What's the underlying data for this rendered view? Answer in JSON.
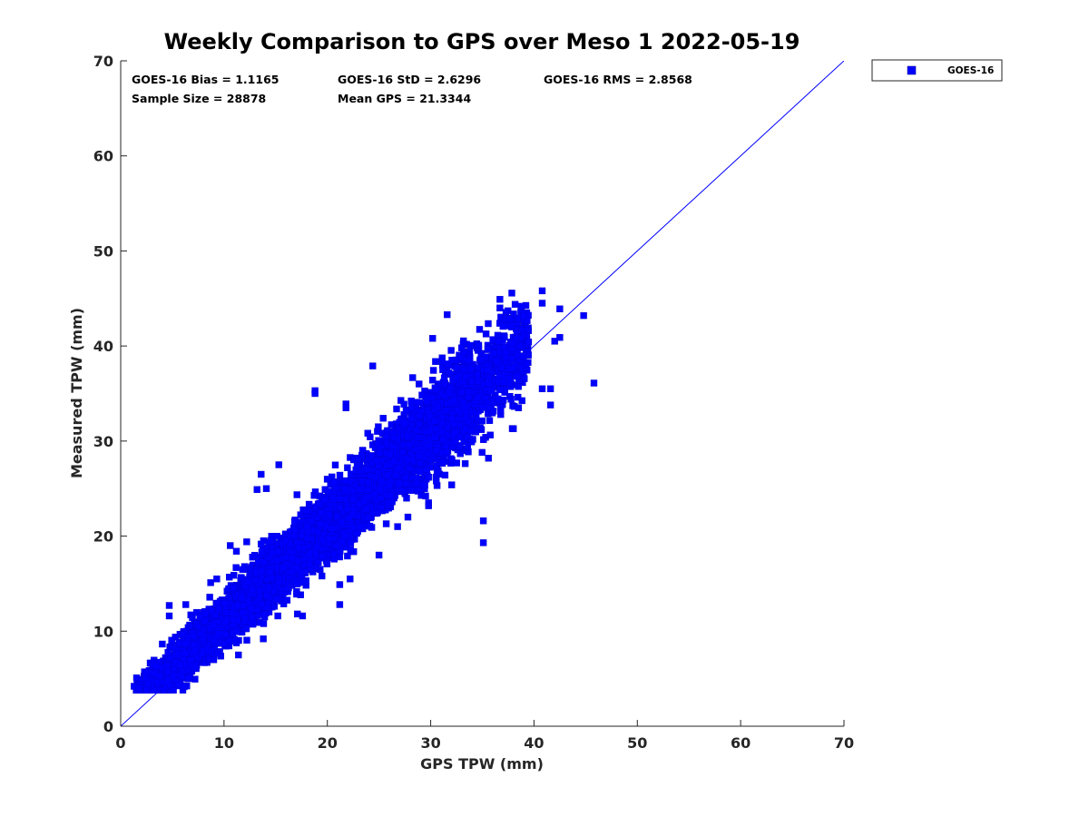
{
  "chart_data": {
    "type": "scatter",
    "title": "Weekly Comparison to GPS over Meso 1 2022-05-19",
    "xlabel": "GPS TPW (mm)",
    "ylabel": "Measured TPW (mm)",
    "xlim": [
      0,
      70
    ],
    "ylim": [
      0,
      70
    ],
    "xticks": [
      "0",
      "10",
      "20",
      "30",
      "40",
      "50",
      "60",
      "70"
    ],
    "yticks": [
      "0",
      "10",
      "20",
      "30",
      "40",
      "50",
      "60",
      "70"
    ],
    "grid": false,
    "legend_position": "outside-top-right",
    "reference_line": {
      "name": "1:1 line",
      "x": [
        0,
        70
      ],
      "y": [
        0,
        70
      ],
      "color": "#0000ff"
    },
    "stats": {
      "bias": "GOES-16 Bias = 1.1165",
      "std": "GOES-16 StD = 2.6296",
      "rms": "GOES-16 RMS = 2.8568",
      "sample_size": "Sample Size = 28878",
      "mean_gps": "Mean GPS = 21.3344"
    },
    "series": [
      {
        "name": "GOES-16",
        "color": "#0000ff",
        "marker": "square",
        "bulk_model": {
          "x_min": 1.5,
          "x_max": 39.5,
          "slope": 1.0,
          "intercept": 1.1,
          "spread": 1.6,
          "count": 6500
        },
        "outliers": [
          {
            "x": 45.8,
            "y": 36.1
          },
          {
            "x": 44.8,
            "y": 43.2
          },
          {
            "x": 42.5,
            "y": 43.9
          },
          {
            "x": 42.5,
            "y": 40.9
          },
          {
            "x": 42.0,
            "y": 40.5
          },
          {
            "x": 40.8,
            "y": 45.8
          },
          {
            "x": 40.8,
            "y": 44.5
          },
          {
            "x": 41.6,
            "y": 35.5
          },
          {
            "x": 41.6,
            "y": 33.8
          },
          {
            "x": 40.8,
            "y": 35.5
          },
          {
            "x": 39.0,
            "y": 43.2
          },
          {
            "x": 36.7,
            "y": 44.9
          },
          {
            "x": 36.7,
            "y": 44.0
          },
          {
            "x": 38.6,
            "y": 40.0
          },
          {
            "x": 38.5,
            "y": 33.5
          },
          {
            "x": 38.0,
            "y": 31.3
          },
          {
            "x": 35.1,
            "y": 21.6
          },
          {
            "x": 35.1,
            "y": 19.3
          },
          {
            "x": 31.6,
            "y": 43.3
          },
          {
            "x": 30.2,
            "y": 40.8
          },
          {
            "x": 29.8,
            "y": 23.5
          },
          {
            "x": 29.8,
            "y": 23.2
          },
          {
            "x": 27.8,
            "y": 22.0
          },
          {
            "x": 25.7,
            "y": 21.3
          },
          {
            "x": 25.0,
            "y": 18.0
          },
          {
            "x": 24.4,
            "y": 37.9
          },
          {
            "x": 21.2,
            "y": 14.9
          },
          {
            "x": 21.2,
            "y": 12.8
          },
          {
            "x": 21.8,
            "y": 33.9
          },
          {
            "x": 21.8,
            "y": 33.5
          },
          {
            "x": 18.8,
            "y": 35.3
          },
          {
            "x": 18.8,
            "y": 35.0
          },
          {
            "x": 15.3,
            "y": 27.5
          },
          {
            "x": 13.2,
            "y": 24.9
          },
          {
            "x": 13.6,
            "y": 26.5
          },
          {
            "x": 14.1,
            "y": 25.0
          },
          {
            "x": 17.1,
            "y": 11.8
          },
          {
            "x": 17.6,
            "y": 11.6
          },
          {
            "x": 15.2,
            "y": 11.6
          },
          {
            "x": 13.8,
            "y": 9.2
          },
          {
            "x": 11.2,
            "y": 18.4
          },
          {
            "x": 10.6,
            "y": 19.0
          },
          {
            "x": 12.2,
            "y": 19.4
          },
          {
            "x": 9.3,
            "y": 15.5
          },
          {
            "x": 6.3,
            "y": 12.8
          },
          {
            "x": 4.7,
            "y": 12.7
          },
          {
            "x": 4.7,
            "y": 11.6
          },
          {
            "x": 8.7,
            "y": 15.1
          },
          {
            "x": 1.3,
            "y": 4.2
          },
          {
            "x": 1.8,
            "y": 4.0
          },
          {
            "x": 5.1,
            "y": 3.8
          },
          {
            "x": 9.0,
            "y": 7.0
          },
          {
            "x": 11.4,
            "y": 7.5
          },
          {
            "x": 22.2,
            "y": 15.5
          },
          {
            "x": 26.8,
            "y": 21.0
          },
          {
            "x": 29.0,
            "y": 26.8
          },
          {
            "x": 32.3,
            "y": 30.8
          },
          {
            "x": 35.6,
            "y": 28.2
          },
          {
            "x": 37.6,
            "y": 36.6
          },
          {
            "x": 33.0,
            "y": 39.8
          }
        ]
      }
    ],
    "colors": {
      "marker": "#0000ff",
      "axes": "#262626",
      "background": "#ffffff"
    }
  }
}
